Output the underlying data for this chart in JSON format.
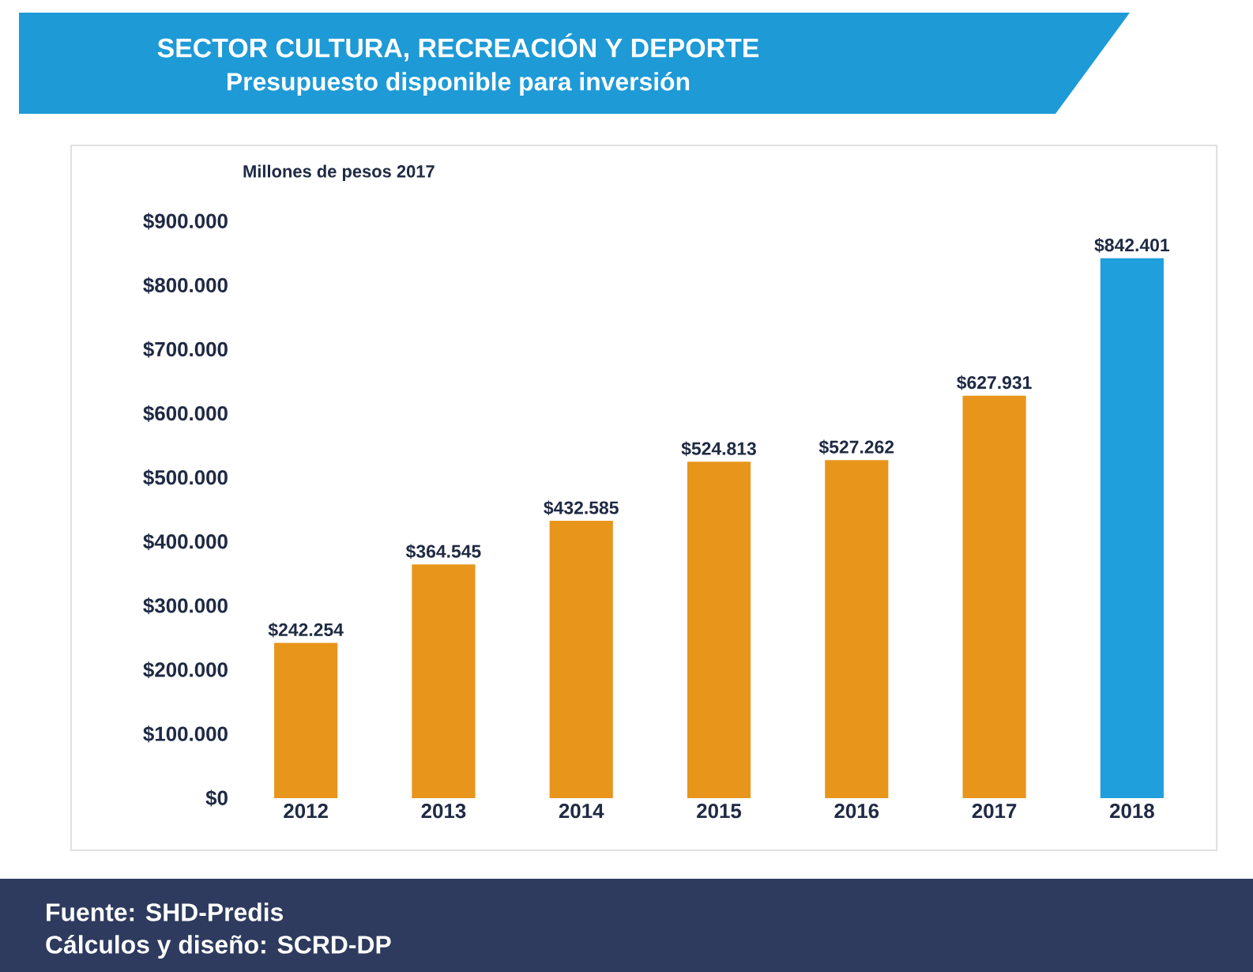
{
  "chart_data": {
    "type": "bar",
    "title": "SECTOR CULTURA, RECREACIÓN Y DEPORTE",
    "subtitle": "Presupuesto disponible para inversión",
    "ylabel": "Millones de pesos 2017",
    "categories": [
      "2012",
      "2013",
      "2014",
      "2015",
      "2016",
      "2017",
      "2018"
    ],
    "values": [
      242254,
      364545,
      432585,
      524813,
      527262,
      627931,
      842401
    ],
    "colors": [
      "#e8951c",
      "#e8951c",
      "#e8951c",
      "#e8951c",
      "#e8951c",
      "#e8951c",
      "#1f9fdc"
    ],
    "value_labels": [
      "$242.254",
      "$364.545",
      "$432.585",
      "$524.813",
      "$527.262",
      "$627.931",
      "$842.401"
    ],
    "ylim": [
      0,
      900000
    ],
    "yticks": [
      {
        "value": 0,
        "label": "$0"
      },
      {
        "value": 100000,
        "label": "$100.000"
      },
      {
        "value": 200000,
        "label": "$200.000"
      },
      {
        "value": 300000,
        "label": "$300.000"
      },
      {
        "value": 400000,
        "label": "$400.000"
      },
      {
        "value": 500000,
        "label": "$500.000"
      },
      {
        "value": 600000,
        "label": "$600.000"
      },
      {
        "value": 700000,
        "label": "$700.000"
      },
      {
        "value": 800000,
        "label": "$800.000"
      },
      {
        "value": 900000,
        "label": "$900.000"
      }
    ],
    "annotations": [
      "Fuente: SHD-Predis",
      "Cálculos y diseño: SCRD-DP"
    ]
  }
}
